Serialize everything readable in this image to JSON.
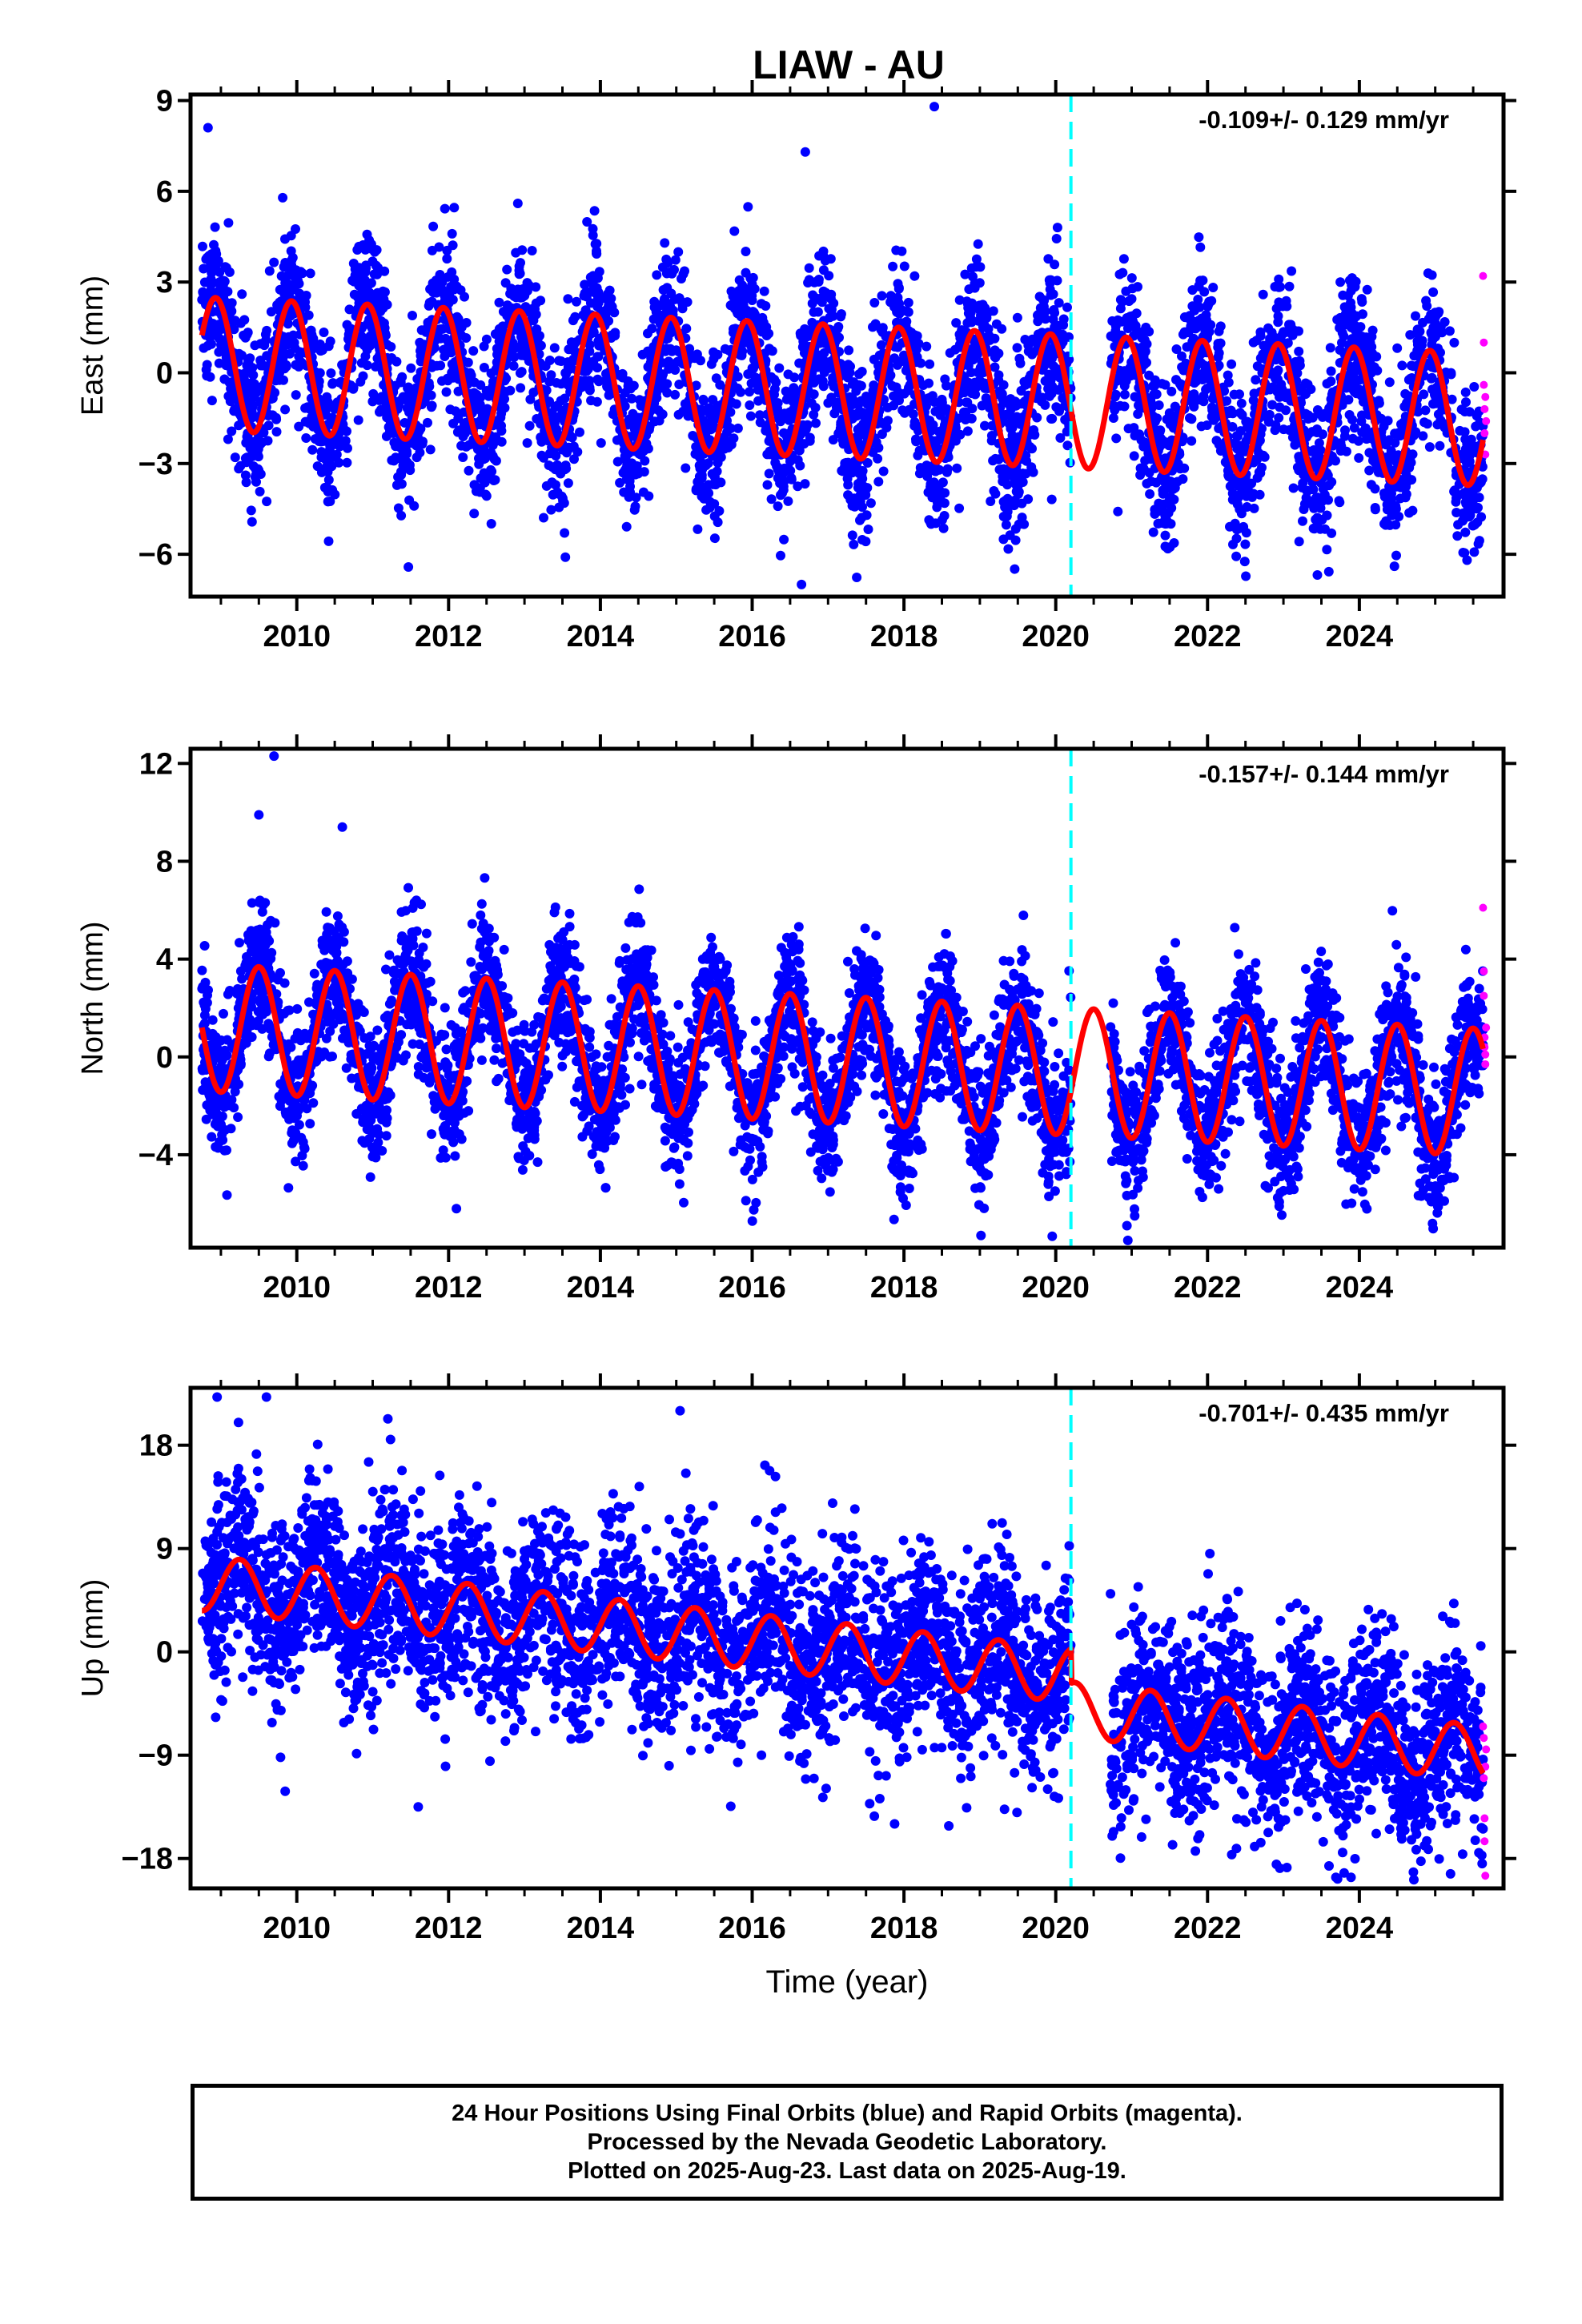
{
  "title": "LIAW - AU",
  "colors": {
    "final_orbits": "#0000ff",
    "rapid_orbits": "#ff00ff",
    "model_fit": "#ff0000",
    "event_line": "#00ffff"
  },
  "chart_data": [
    {
      "type": "scatter",
      "panel": "east",
      "ylabel": "East (mm)",
      "xlabel": "",
      "xlim": [
        2008.6,
        2025.9
      ],
      "ylim": [
        -7.4,
        9.2
      ],
      "yticks": [
        -6,
        -3,
        0,
        3,
        6,
        9
      ],
      "ytick_labels": [
        "−6",
        "−3",
        "0",
        "3",
        "6",
        "9"
      ],
      "xticks": [
        2010,
        2012,
        2014,
        2016,
        2018,
        2020,
        2022,
        2024
      ],
      "xtick_labels": [
        "2010",
        "2012",
        "2014",
        "2016",
        "2018",
        "2020",
        "2022",
        "2024"
      ],
      "rate_annotation": "-0.109+/- 0.129 mm/yr",
      "event_line_x": 2020.2,
      "data_start": 2008.75,
      "data_end": 2025.63,
      "gap_after_event": [
        2020.2,
        2020.72
      ],
      "model": {
        "offset": 0.3,
        "trend_per_year": -0.109,
        "annual_amplitude": 2.2,
        "annual_peak": 2008.93,
        "amplitude_change_per_year": 0.0,
        "step_at_event": 0.0
      },
      "scatter_sigma": 1.3,
      "points_per_year": 300,
      "rapid_points": [
        [
          2025.63,
          3.2
        ],
        [
          2025.64,
          1.0
        ],
        [
          2025.64,
          -0.4
        ],
        [
          2025.65,
          -1.2
        ],
        [
          2025.65,
          -2.0
        ],
        [
          2025.66,
          -2.7
        ],
        [
          2025.66,
          -0.8
        ],
        [
          2025.67,
          -1.6
        ]
      ],
      "outliers": [
        [
          2008.83,
          8.1
        ],
        [
          2018.4,
          8.8
        ],
        [
          2016.7,
          7.3
        ],
        [
          2016.65,
          -7.0
        ]
      ]
    },
    {
      "type": "scatter",
      "panel": "north",
      "ylabel": "North (mm)",
      "xlabel": "",
      "xlim": [
        2008.6,
        2025.9
      ],
      "ylim": [
        -7.8,
        12.6
      ],
      "yticks": [
        -4,
        0,
        4,
        8,
        12
      ],
      "ytick_labels": [
        "−4",
        "0",
        "4",
        "8",
        "12"
      ],
      "xticks": [
        2010,
        2012,
        2014,
        2016,
        2018,
        2020,
        2022,
        2024
      ],
      "xtick_labels": [
        "2010",
        "2012",
        "2014",
        "2016",
        "2018",
        "2020",
        "2022",
        "2024"
      ],
      "rate_annotation": "-0.157+/- 0.144 mm/yr",
      "event_line_x": 2020.2,
      "data_start": 2008.75,
      "data_end": 2025.63,
      "gap_after_event": [
        2020.2,
        2020.72
      ],
      "model": {
        "offset": 1.2,
        "trend_per_year": -0.157,
        "annual_amplitude": 2.6,
        "annual_peak": 2009.5,
        "amplitude_change_per_year": 0.0,
        "step_at_event": 0.0
      },
      "scatter_sigma": 1.4,
      "points_per_year": 300,
      "rapid_points": [
        [
          2025.63,
          6.1
        ],
        [
          2025.64,
          3.5
        ],
        [
          2025.64,
          2.5
        ],
        [
          2025.65,
          0.8
        ],
        [
          2025.65,
          0.4
        ],
        [
          2025.66,
          -0.3
        ],
        [
          2025.66,
          0.1
        ],
        [
          2025.67,
          1.2
        ]
      ],
      "outliers": [
        [
          2009.7,
          12.3
        ],
        [
          2009.5,
          9.9
        ],
        [
          2010.6,
          9.4
        ],
        [
          2020.95,
          -7.5
        ]
      ]
    },
    {
      "type": "scatter",
      "panel": "up",
      "ylabel": "Up (mm)",
      "xlabel": "Time (year)",
      "xlim": [
        2008.6,
        2025.9
      ],
      "ylim": [
        -20.6,
        23.0
      ],
      "yticks": [
        -18,
        -9,
        0,
        9,
        18
      ],
      "ytick_labels": [
        "−18",
        "−9",
        "0",
        "9",
        "18"
      ],
      "xticks": [
        2010,
        2012,
        2014,
        2016,
        2018,
        2020,
        2022,
        2024
      ],
      "xtick_labels": [
        "2010",
        "2012",
        "2014",
        "2016",
        "2018",
        "2020",
        "2022",
        "2024"
      ],
      "rate_annotation": "-0.701+/- 0.435 mm/yr",
      "event_line_x": 2020.2,
      "data_start": 2008.75,
      "data_end": 2025.63,
      "gap_after_event": [
        2020.2,
        2020.72
      ],
      "model": {
        "offset": 6.0,
        "trend_per_year": -0.701,
        "annual_amplitude": 2.4,
        "annual_peak": 2009.25,
        "amplitude_change_per_year": 0.0,
        "step_at_event": -3.0
      },
      "scatter_sigma": 4.2,
      "points_per_year": 300,
      "rapid_points": [
        [
          2025.63,
          -6.5
        ],
        [
          2025.64,
          -7.5
        ],
        [
          2025.64,
          -11.0
        ],
        [
          2025.65,
          -14.5
        ],
        [
          2025.65,
          -16.5
        ],
        [
          2025.66,
          -19.5
        ],
        [
          2025.66,
          -10.0
        ],
        [
          2025.67,
          -8.5
        ]
      ],
      "outliers": [
        [
          2008.95,
          22.2
        ],
        [
          2009.6,
          22.2
        ],
        [
          2015.05,
          21.0
        ],
        [
          2011.2,
          20.3
        ],
        [
          2011.6,
          -13.5
        ]
      ]
    }
  ],
  "footer": {
    "line1": "24 Hour Positions Using Final Orbits (blue) and Rapid Orbits (magenta).",
    "line2": "Processed by the Nevada Geodetic Laboratory.",
    "line3": "Plotted on 2025-Aug-23. Last data on 2025-Aug-19."
  }
}
